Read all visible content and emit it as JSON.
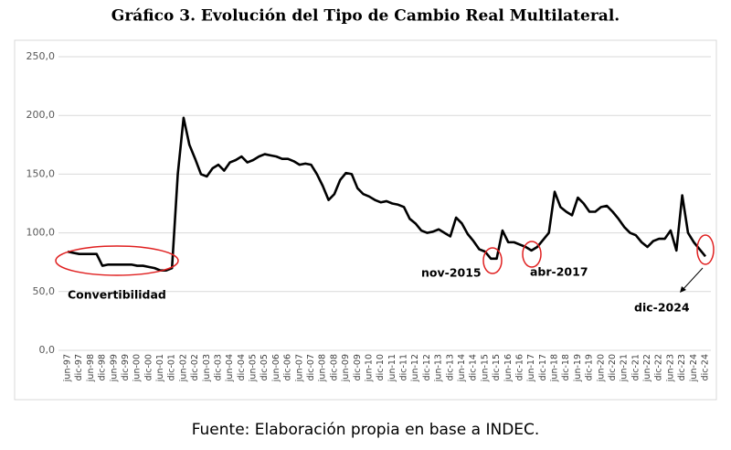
{
  "chart_data": {
    "type": "line",
    "title": "Gráfico 3. Evolución del Tipo de Cambio Real Multilateral.",
    "source": "Fuente: Elaboración propia en base a INDEC.",
    "annotations": [
      "Convertibilidad",
      "nov-2015",
      "abr-2017",
      "dic-2024"
    ],
    "categories": [
      "jun-97",
      null,
      "dic-97",
      null,
      "jun-98",
      null,
      "dic-98",
      null,
      "jun-99",
      null,
      "dic-99",
      null,
      "jun-00",
      null,
      "dic-00",
      null,
      "jun-01",
      null,
      "dic-01",
      null,
      "jun-02",
      null,
      "dic-02",
      null,
      "jun-03",
      null,
      "dic-03",
      null,
      "jun-04",
      null,
      "dic-04",
      null,
      "jun-05",
      null,
      "dic-05",
      null,
      "jun-06",
      null,
      "dic-06",
      null,
      "jun-07",
      null,
      "dic-07",
      null,
      "jun-08",
      null,
      "dic-08",
      null,
      "jun-09",
      null,
      "dic-09",
      null,
      "jun-10",
      null,
      "dic-10",
      null,
      "jun-11",
      null,
      "dic-11",
      null,
      "jun-12",
      null,
      "dic-12",
      null,
      "jun-13",
      null,
      "dic-13",
      null,
      "jun-14",
      null,
      "dic-14",
      null,
      "jun-15",
      null,
      "dic-15",
      null,
      "jun-16",
      null,
      "dic-16",
      null,
      "jun-17",
      null,
      "dic-17",
      null,
      "jun-18",
      null,
      "dic-18",
      null,
      "jun-19",
      null,
      "dic-19",
      null,
      "jun-20",
      null,
      "dic-20",
      null,
      "jun-21",
      null,
      "dic-21",
      null,
      "jun-22",
      null,
      "dic-22",
      null,
      "jun-23",
      null,
      "dic-23",
      null,
      "jun-24",
      null,
      "dic-24"
    ],
    "values": [
      84,
      83,
      82,
      82,
      82,
      82,
      72,
      73,
      73,
      73,
      73,
      73,
      72,
      72,
      71,
      70,
      68,
      68,
      70,
      150,
      198,
      175,
      163,
      150,
      148,
      155,
      158,
      153,
      160,
      162,
      165,
      160,
      162,
      165,
      167,
      166,
      165,
      163,
      163,
      161,
      158,
      159,
      158,
      150,
      140,
      128,
      133,
      145,
      151,
      150,
      138,
      133,
      131,
      128,
      126,
      127,
      125,
      124,
      122,
      112,
      108,
      102,
      100,
      101,
      103,
      100,
      97,
      113,
      108,
      99,
      93,
      86,
      84,
      78,
      78,
      102,
      92,
      92,
      90,
      88,
      85,
      88,
      94,
      100,
      135,
      122,
      118,
      115,
      130,
      125,
      118,
      118,
      122,
      123,
      118,
      112,
      105,
      100,
      98,
      92,
      88,
      93,
      95,
      95,
      102,
      85,
      132,
      100,
      92,
      86,
      80
    ],
    "color": "#000000",
    "ylim": [
      0,
      250
    ],
    "yticks": [
      {
        "value": 0,
        "label": "0,0"
      },
      {
        "value": 50,
        "label": "50,0"
      },
      {
        "value": 100,
        "label": "100,0"
      },
      {
        "value": 150,
        "label": "150,0"
      },
      {
        "value": 200,
        "label": "200,0"
      },
      {
        "value": 250,
        "label": "250,0"
      }
    ],
    "grid": true
  }
}
